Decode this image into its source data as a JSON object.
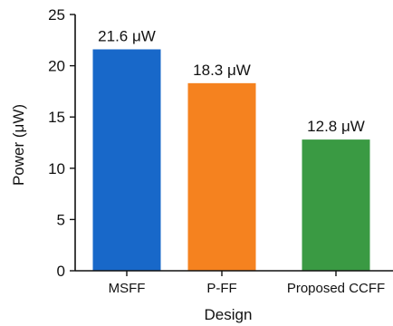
{
  "chart_data": {
    "type": "bar",
    "categories": [
      "MSFF",
      "P-FF",
      "Proposed CCFF"
    ],
    "values": [
      21.6,
      18.3,
      12.8
    ],
    "data_labels": [
      "21.6 μW",
      "18.3 μW",
      "12.8 μW"
    ],
    "colors": [
      "#1868c9",
      "#f5821f",
      "#3a9a43"
    ],
    "xlabel": "Design",
    "ylabel": "Power (μW)",
    "ylim": [
      0,
      25
    ],
    "yticks": [
      "0",
      "5",
      "10",
      "15",
      "20",
      "25"
    ],
    "grid": false,
    "legend": "none"
  }
}
